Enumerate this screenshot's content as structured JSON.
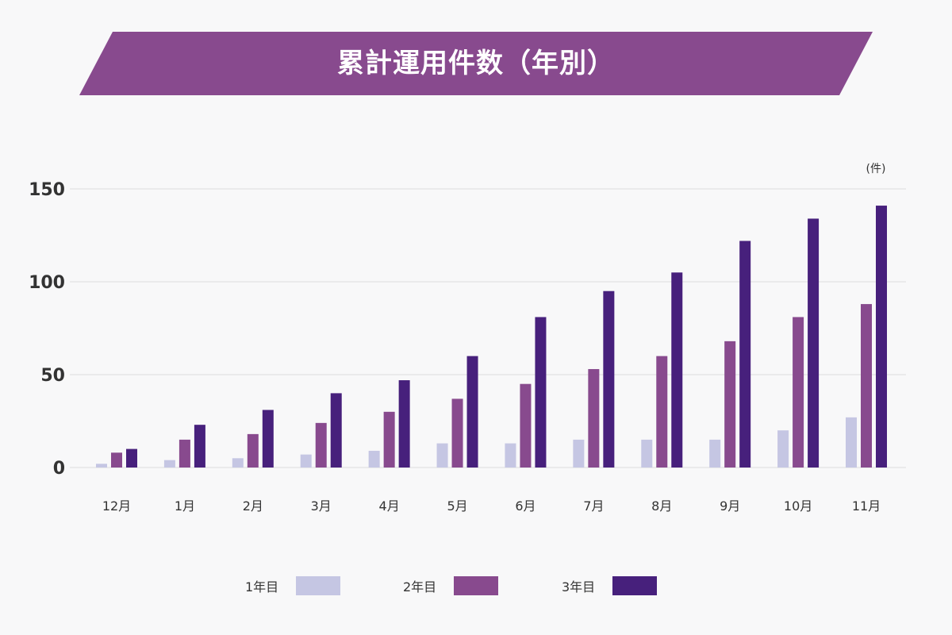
{
  "title": "累計運用件数（年別）",
  "colors": {
    "banner": "#884a8e",
    "background": "#f8f8f9",
    "grid": "#dddddd",
    "text": "#333333"
  },
  "chart_data": {
    "type": "bar",
    "title": "累計運用件数（年別）",
    "unit": "(件)",
    "categories": [
      "12月",
      "1月",
      "2月",
      "3月",
      "4月",
      "5月",
      "6月",
      "7月",
      "8月",
      "9月",
      "10月",
      "11月"
    ],
    "series": [
      {
        "name": "1年目",
        "color": "#c5c6e3",
        "values": [
          2,
          4,
          5,
          7,
          9,
          13,
          13,
          15,
          15,
          15,
          20,
          27
        ]
      },
      {
        "name": "2年目",
        "color": "#884a8e",
        "values": [
          8,
          15,
          18,
          24,
          30,
          37,
          45,
          53,
          60,
          68,
          81,
          88
        ]
      },
      {
        "name": "3年目",
        "color": "#47207c",
        "values": [
          10,
          23,
          31,
          40,
          47,
          60,
          81,
          95,
          105,
          122,
          134,
          141
        ]
      }
    ],
    "yticks": [
      0,
      50,
      100,
      150
    ],
    "ylim": [
      0,
      150
    ],
    "xlabel": "",
    "ylabel": "",
    "grid": true,
    "legend_position": "bottom"
  }
}
